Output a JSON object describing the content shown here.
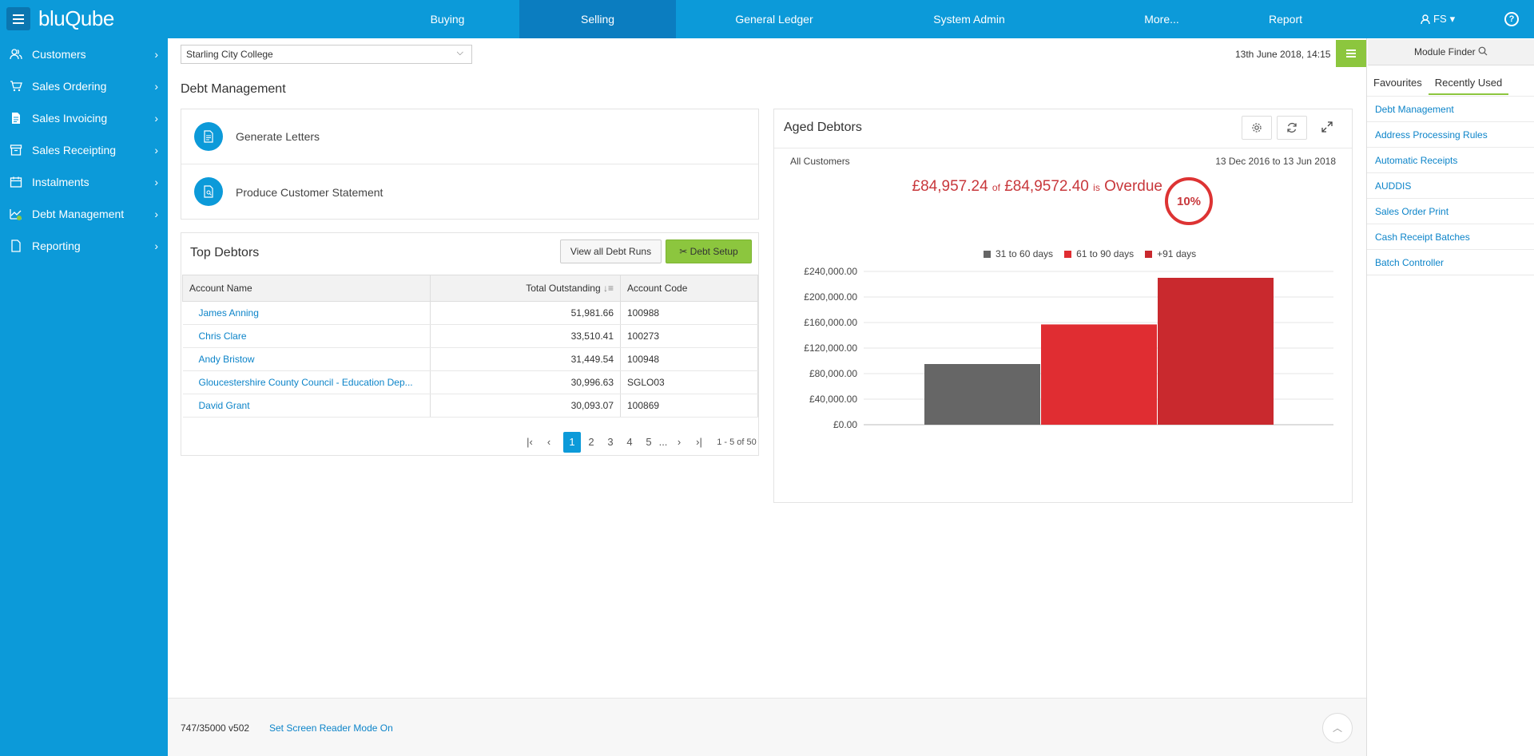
{
  "app": {
    "logo": "bluQube"
  },
  "nav": {
    "items": [
      {
        "label": "Buying"
      },
      {
        "label": "Selling"
      },
      {
        "label": "General Ledger"
      },
      {
        "label": "System Admin"
      },
      {
        "label": "More..."
      },
      {
        "label": "Report"
      }
    ],
    "user": "FS",
    "help": "?"
  },
  "sidebar": {
    "items": [
      {
        "label": "Customers"
      },
      {
        "label": "Sales Ordering"
      },
      {
        "label": "Sales Invoicing"
      },
      {
        "label": "Sales Receipting"
      },
      {
        "label": "Instalments"
      },
      {
        "label": "Debt Management"
      },
      {
        "label": "Reporting"
      }
    ]
  },
  "main": {
    "company": "Starling City College",
    "datetime": "13th June 2018, 14:15",
    "page_title": "Debt Management",
    "actions": [
      {
        "label": "Generate Letters"
      },
      {
        "label": "Produce Customer Statement"
      }
    ]
  },
  "top_debtors": {
    "title": "Top Debtors",
    "view_all": "View all Debt Runs",
    "setup": "Debt Setup",
    "columns": [
      "Account Name",
      "Total Outstanding",
      "Account Code"
    ],
    "rows": [
      {
        "name": "James Anning",
        "total": "51,981.66",
        "code": "100988"
      },
      {
        "name": "Chris Clare",
        "total": "33,510.41",
        "code": "100273"
      },
      {
        "name": "Andy Bristow",
        "total": "31,449.54",
        "code": "100948"
      },
      {
        "name": "Gloucestershire County Council - Education Dep...",
        "total": "30,996.63",
        "code": "SGLO03"
      },
      {
        "name": "David Grant",
        "total": "30,093.07",
        "code": "100869"
      }
    ],
    "pager": {
      "pages": [
        "1",
        "2",
        "3",
        "4",
        "5",
        "..."
      ],
      "summary": "1 - 5 of 50"
    }
  },
  "aged": {
    "title": "Aged Debtors",
    "scope": "All Customers",
    "range": "13 Dec 2016 to 13 Jun 2018",
    "amount": "£84,957.24",
    "of": "of",
    "total": "£84,9572.40",
    "is": "is",
    "overdue": "Overdue",
    "percent": "10%"
  },
  "chart_data": {
    "type": "bar",
    "title": "",
    "categories": [
      "31 to 60 days",
      "61 to 90 days",
      "+91 days"
    ],
    "values": [
      95000,
      157000,
      230000
    ],
    "colors": [
      "#666666",
      "#e02d32",
      "#c9292e"
    ],
    "yticks": [
      "£0.00",
      "£40,000.00",
      "£80,000.00",
      "£120,000.00",
      "£160,000.00",
      "£200,000.00",
      "£240,000.00"
    ],
    "ylim": [
      0,
      240000
    ],
    "legend": "top-center"
  },
  "right_panel": {
    "module_finder": "Module Finder",
    "tabs": [
      {
        "label": "Favourites"
      },
      {
        "label": "Recently Used"
      }
    ],
    "items": [
      {
        "label": "Debt Management"
      },
      {
        "label": "Address Processing Rules"
      },
      {
        "label": "Automatic Receipts"
      },
      {
        "label": "AUDDIS"
      },
      {
        "label": "Sales Order Print"
      },
      {
        "label": "Cash Receipt Batches"
      },
      {
        "label": "Batch Controller"
      }
    ]
  },
  "footer": {
    "version": "747/35000 v502",
    "screen_reader": "Set Screen Reader Mode On"
  }
}
